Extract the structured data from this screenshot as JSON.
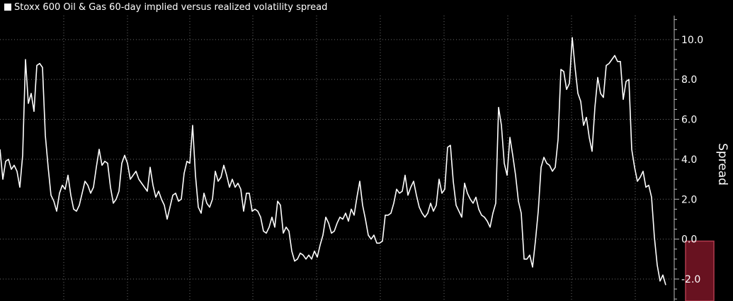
{
  "chart_data": {
    "type": "line",
    "title": "",
    "ylabel": "Spread",
    "xlabel": "",
    "ylim": [
      -3.1,
      11.2
    ],
    "yticks": [
      -2.0,
      0.0,
      2.0,
      4.0,
      6.0,
      8.0,
      10.0
    ],
    "ytick_labels": [
      "-2.0",
      "0.0",
      "2.0",
      "4.0",
      "6.0",
      "8.0",
      "10.0"
    ],
    "grid": true,
    "legend": "top-left",
    "series": [
      {
        "name": "Stoxx 600 Oil & Gas 60-day implied versus realized volatility spread",
        "color": "#ffffff",
        "values": [
          4.5,
          3.0,
          3.9,
          4.0,
          3.5,
          3.7,
          3.4,
          2.6,
          4.2,
          9.0,
          6.8,
          7.3,
          6.4,
          8.7,
          8.8,
          8.6,
          5.2,
          3.6,
          2.2,
          1.9,
          1.4,
          2.3,
          2.7,
          2.5,
          3.2,
          2.2,
          1.5,
          1.4,
          1.7,
          2.3,
          2.9,
          2.7,
          2.3,
          2.6,
          3.6,
          4.5,
          3.7,
          3.9,
          3.8,
          2.6,
          1.8,
          2.0,
          2.4,
          3.8,
          4.2,
          3.8,
          3.0,
          3.2,
          3.4,
          3.0,
          2.8,
          2.6,
          2.4,
          3.6,
          2.7,
          2.1,
          2.4,
          2.0,
          1.7,
          1.0,
          1.6,
          2.2,
          2.3,
          1.9,
          2.0,
          3.3,
          3.9,
          3.8,
          5.7,
          3.2,
          1.6,
          1.3,
          2.3,
          1.8,
          1.6,
          2.0,
          3.4,
          2.9,
          3.1,
          3.7,
          3.2,
          2.6,
          3.0,
          2.6,
          2.8,
          2.5,
          1.4,
          2.3,
          2.3,
          1.4,
          1.5,
          1.4,
          1.1,
          0.4,
          0.3,
          0.6,
          1.1,
          0.6,
          1.9,
          1.7,
          0.3,
          0.6,
          0.4,
          -0.6,
          -1.1,
          -1.0,
          -0.7,
          -0.8,
          -1.0,
          -0.8,
          -1.0,
          -0.6,
          -0.9,
          -0.3,
          0.2,
          1.1,
          0.8,
          0.3,
          0.4,
          0.8,
          1.1,
          1.0,
          1.3,
          0.9,
          1.5,
          1.2,
          2.1,
          2.9,
          1.7,
          1.0,
          0.2,
          0.0,
          0.2,
          -0.2,
          -0.2,
          -0.1,
          1.2,
          1.2,
          1.3,
          1.8,
          2.5,
          2.3,
          2.4,
          3.2,
          2.2,
          2.6,
          2.9,
          2.2,
          1.6,
          1.3,
          1.1,
          1.3,
          1.8,
          1.4,
          1.7,
          3.0,
          2.3,
          2.5,
          4.6,
          4.7,
          2.9,
          1.7,
          1.4,
          1.1,
          2.8,
          2.3,
          2.0,
          1.8,
          2.1,
          1.5,
          1.2,
          1.1,
          0.9,
          0.6,
          1.3,
          1.8,
          6.6,
          5.7,
          3.8,
          3.2,
          5.1,
          4.2,
          3.2,
          1.9,
          1.3,
          -1.0,
          -1.0,
          -0.8,
          -1.4,
          -0.1,
          1.4,
          3.6,
          4.1,
          3.8,
          3.7,
          3.4,
          3.6,
          5.0,
          8.5,
          8.4,
          7.5,
          7.8,
          10.1,
          8.6,
          7.3,
          6.9,
          5.7,
          6.1,
          5.1,
          4.4,
          6.6,
          8.1,
          7.3,
          7.1,
          8.7,
          8.8,
          9.0,
          9.2,
          8.9,
          8.9,
          7.0,
          7.9,
          8.0,
          4.5,
          3.6,
          2.9,
          3.1,
          3.4,
          2.6,
          2.7,
          2.1,
          0.1,
          -1.3,
          -2.1,
          -1.8,
          -2.3
        ]
      }
    ],
    "highlight": {
      "ymin": -3.1,
      "ymax": -0.1,
      "start_index": 242,
      "end_index": 252,
      "color": "#7a1526",
      "border_color": "#b03a4d"
    }
  }
}
